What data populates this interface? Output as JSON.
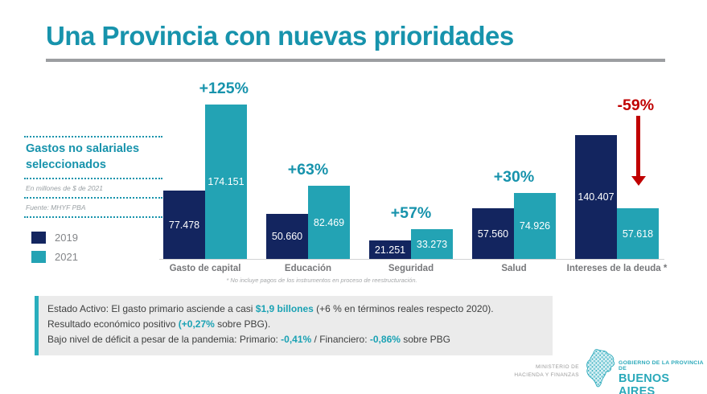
{
  "slide": {
    "title": "Una Provincia con nuevas prioridades",
    "sidebar": {
      "heading": "Gastos no salariales seleccionados",
      "note_units": "En millones de $ de 2021",
      "note_source": "Fuente: MHYF PBA"
    },
    "footnote": "* No incluye pagos de los instrumentos en proceso de reestructuración.",
    "info_box": {
      "lines": [
        {
          "segments": [
            {
              "t": "Estado Activo: El gasto primario asciende a casi "
            },
            {
              "t": "$1,9 billones",
              "hl": true
            },
            {
              "t": " (+6 % en términos reales respecto 2020)."
            }
          ]
        },
        {
          "segments": [
            {
              "t": "Resultado económico positivo "
            },
            {
              "t": "(+0,27%",
              "hl": true
            },
            {
              "t": " sobre PBG)."
            }
          ]
        },
        {
          "segments": [
            {
              "t": "Bajo nivel de déficit a pesar de la pandemia: Primario: "
            },
            {
              "t": "-0,41%",
              "hl": true
            },
            {
              "t": " / Financiero: "
            },
            {
              "t": "-0,86%",
              "hl": true
            },
            {
              "t": " sobre PBG"
            }
          ]
        }
      ]
    },
    "footer": {
      "ministry_line1": "MINISTERIO DE",
      "ministry_line2": "HACIENDA Y FINANZAS",
      "gov_line1": "GOBIERNO DE LA PROVINCIA DE",
      "gov_line2": "BUENOS AIRES"
    },
    "colors": {
      "accent_teal": "#1793ac",
      "bar_navy": "#13255f",
      "bar_teal": "#23a3b4",
      "negative_red": "#c00000",
      "info_border_teal": "#29aebd"
    }
  },
  "chart_data": {
    "type": "bar",
    "title": "Gastos no salariales seleccionados",
    "units": "En millones de $ de 2021",
    "source": "Fuente: MHYF PBA",
    "categories": [
      "Gasto de capital",
      "Educación",
      "Seguridad",
      "Salud",
      "Intereses de la deuda *"
    ],
    "series": [
      {
        "name": "2019",
        "color": "#13255f",
        "values": [
          77478,
          50660,
          21251,
          57560,
          140407
        ],
        "value_labels": [
          "77.478",
          "50.660",
          "21.251",
          "57.560",
          "140.407"
        ]
      },
      {
        "name": "2021",
        "color": "#23a3b4",
        "values": [
          174151,
          82469,
          33273,
          74926,
          57618
        ],
        "value_labels": [
          "174.151",
          "82.469",
          "33.273",
          "74.926",
          "57.618"
        ]
      }
    ],
    "pct_changes": [
      "+125%",
      "+63%",
      "+57%",
      "+30%",
      "-59%"
    ],
    "pct_align": [
      "right",
      "center",
      "center",
      "center",
      "right"
    ],
    "ylim": [
      0,
      200000
    ],
    "grid": false,
    "legend_position": "left"
  }
}
